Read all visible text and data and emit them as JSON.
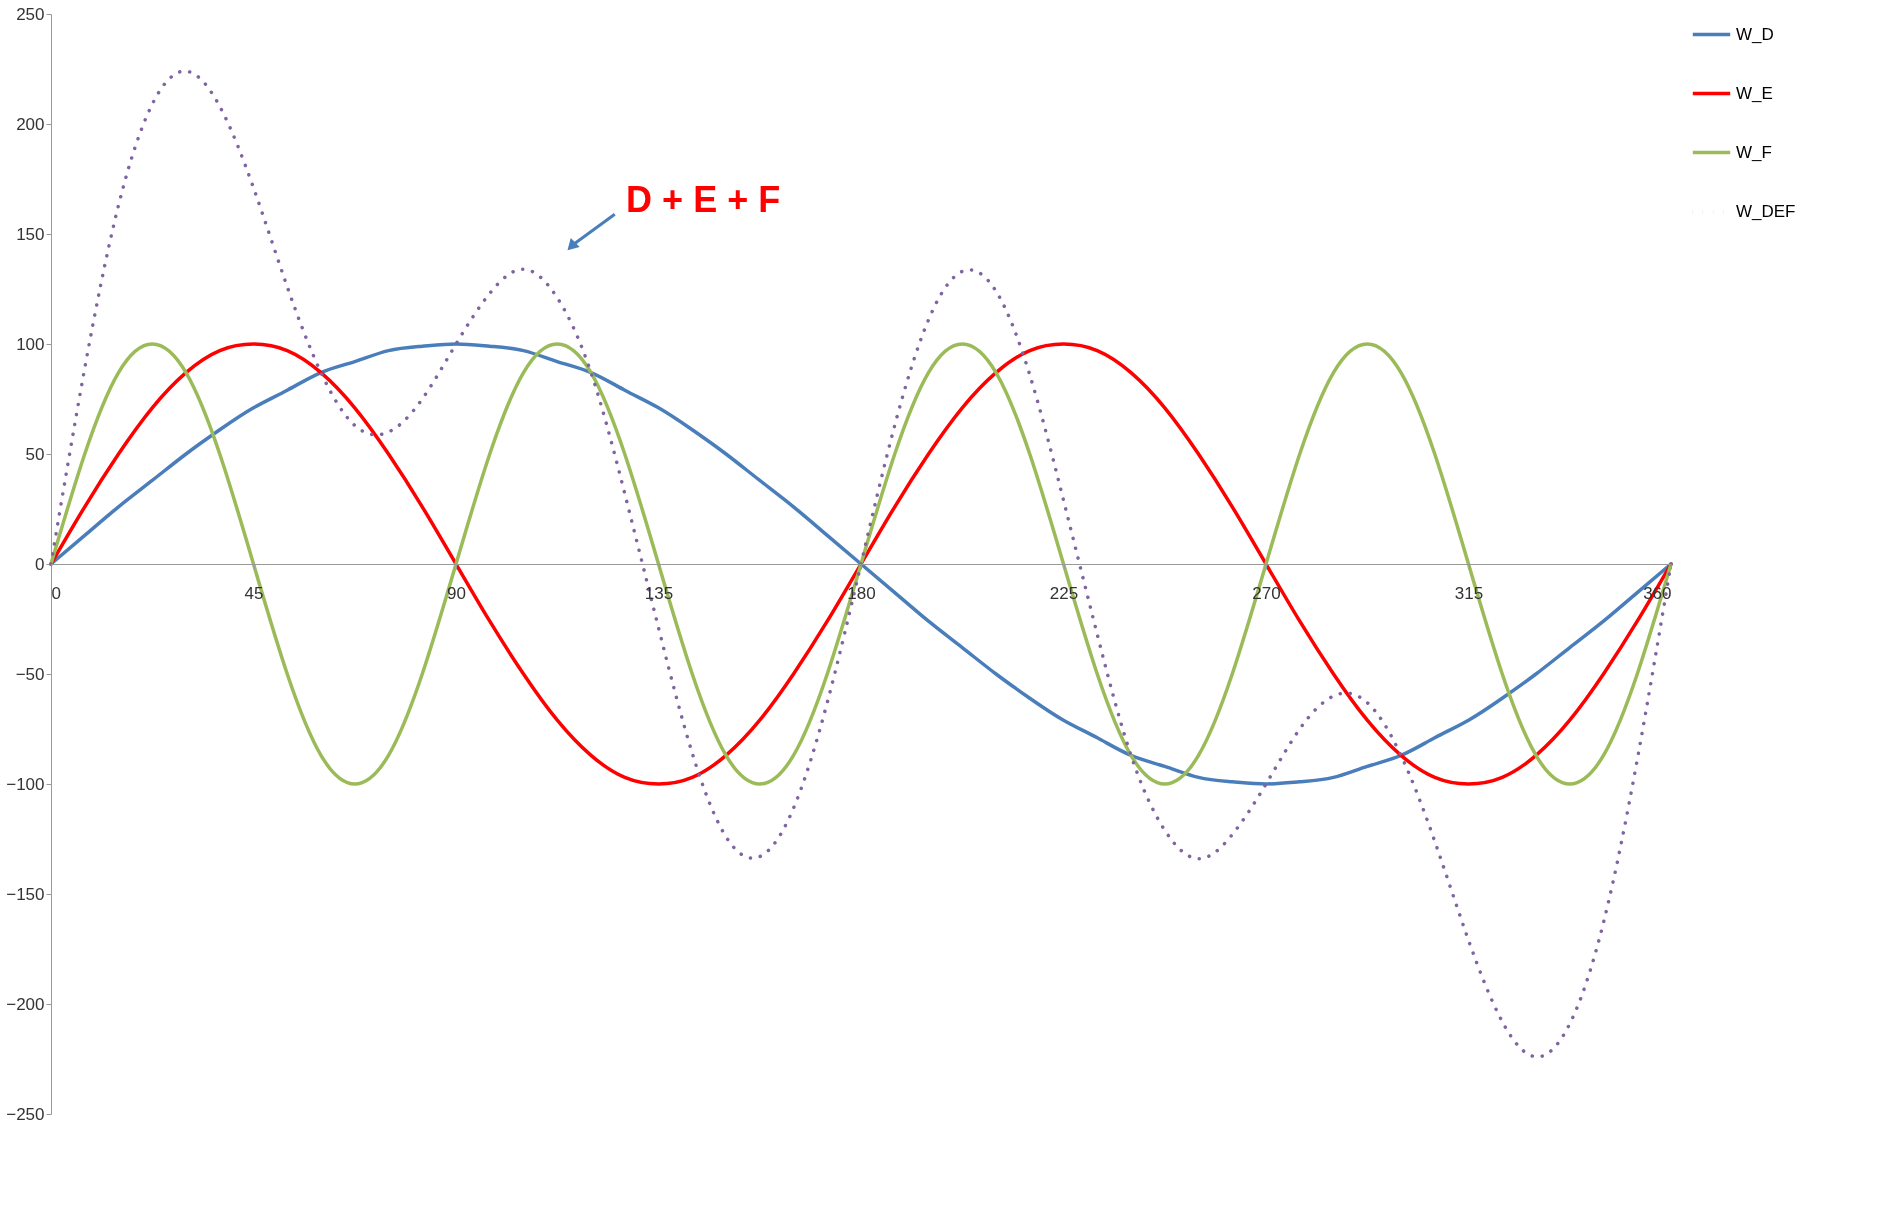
{
  "chart_data": {
    "type": "line",
    "x": [
      0,
      7.5,
      15,
      22.5,
      30,
      37.5,
      45,
      52.5,
      60,
      67.5,
      75,
      82.5,
      90,
      97.5,
      105,
      112.5,
      120,
      127.5,
      135,
      142.5,
      150,
      157.5,
      165,
      172.5,
      180,
      187.5,
      195,
      202.5,
      210,
      217.5,
      225,
      232.5,
      240,
      247.5,
      255,
      262.5,
      270,
      277.5,
      285,
      292.5,
      300,
      307.5,
      315,
      322.5,
      330,
      337.5,
      345,
      352.5,
      360
    ],
    "series": [
      {
        "name": "W_D",
        "color": "#4a7ebb",
        "line_style": "solid",
        "values": [
          0,
          13,
          26,
          38,
          50,
          61,
          71,
          79,
          87,
          92,
          97,
          99,
          100,
          99,
          97,
          92,
          87,
          79,
          71,
          61,
          50,
          38,
          26,
          13,
          0,
          -13,
          -26,
          -38,
          -50,
          -61,
          -71,
          -79,
          -87,
          -92,
          -97,
          -99,
          -100,
          -99,
          -97,
          -92,
          -87,
          -79,
          -71,
          -61,
          -50,
          -38,
          -26,
          -13,
          0
        ]
      },
      {
        "name": "W_E",
        "color": "#ff0000",
        "line_style": "solid",
        "values": [
          0,
          26,
          50,
          71,
          87,
          97,
          100,
          97,
          87,
          71,
          50,
          26,
          0,
          -26,
          -50,
          -71,
          -87,
          -97,
          -100,
          -97,
          -87,
          -71,
          -50,
          -26,
          0,
          26,
          50,
          71,
          87,
          97,
          100,
          97,
          87,
          71,
          50,
          26,
          0,
          -26,
          -50,
          -71,
          -87,
          -97,
          -100,
          -97,
          -87,
          -71,
          -50,
          -26,
          0
        ]
      },
      {
        "name": "W_F",
        "color": "#9bbb59",
        "line_style": "solid",
        "values": [
          0,
          50,
          87,
          100,
          87,
          50,
          0,
          -50,
          -87,
          -100,
          -87,
          -50,
          0,
          50,
          87,
          100,
          87,
          50,
          0,
          -50,
          -87,
          -100,
          -87,
          -50,
          0,
          50,
          87,
          100,
          87,
          50,
          0,
          -50,
          -87,
          -100,
          -87,
          -50,
          0,
          50,
          87,
          100,
          87,
          50,
          0,
          -50,
          -87,
          -100,
          -87,
          -50,
          0
        ]
      },
      {
        "name": "W_DEF",
        "color": "#8064a2",
        "line_style": "dotted",
        "values": [
          0,
          89,
          163,
          209,
          224,
          208,
          171,
          126,
          87,
          63,
          60,
          75,
          100,
          123,
          134,
          121,
          87,
          32,
          -29,
          -86,
          -124,
          -133,
          -111,
          -63,
          0,
          63,
          111,
          133,
          124,
          86,
          29,
          -32,
          -87,
          -121,
          -134,
          -123,
          -100,
          -75,
          -60,
          -63,
          -87,
          -126,
          -171,
          -208,
          -224,
          -209,
          -163,
          -89,
          0
        ]
      }
    ],
    "xlim": [
      0,
      360
    ],
    "xticks": [
      0,
      45,
      90,
      135,
      180,
      225,
      270,
      315,
      360
    ],
    "ylim": [
      -250,
      250
    ],
    "yticks": [
      -250,
      -200,
      -150,
      -100,
      -50,
      0,
      50,
      100,
      150,
      200,
      250
    ],
    "grid": false,
    "legend": "right",
    "marker": "none",
    "annotations": [
      "D + E + F"
    ]
  }
}
